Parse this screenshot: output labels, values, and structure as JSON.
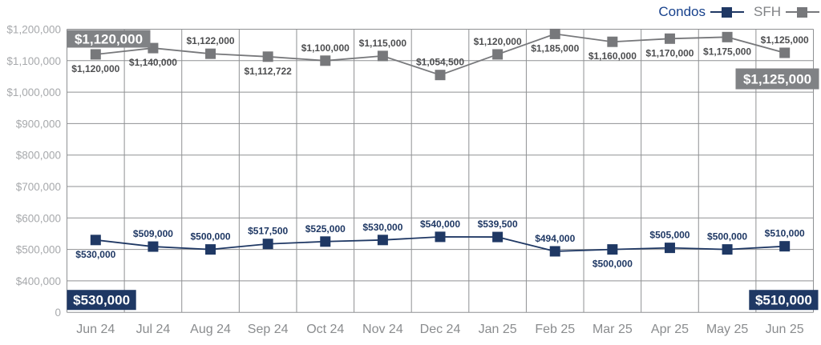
{
  "colors": {
    "condos": "#1F3864",
    "condos_legend_text": "#17418C",
    "sfh": "#77787B",
    "sfh_badge": "#808285",
    "sfh_label_text": "#4D4E50",
    "grid": "#8F9193",
    "y_tick_text": "#A7A9AC",
    "x_tick_text": "#8A8C8E",
    "badge_text": "#FFFFFF"
  },
  "legend": {
    "items": [
      {
        "label": "Condos",
        "series": "Condos"
      },
      {
        "label": "SFH",
        "series": "SFH"
      }
    ]
  },
  "chart_data": {
    "type": "line",
    "title": "",
    "x": [
      "Jun 24",
      "Jul 24",
      "Aug 24",
      "Sep 24",
      "Oct 24",
      "Nov 24",
      "Dec 24",
      "Jan 25",
      "Feb 25",
      "Mar 25",
      "Apr 25",
      "May 25",
      "Jun 25"
    ],
    "series": [
      {
        "name": "SFH",
        "color_key": "sfh",
        "label_color_key": "sfh_label_text",
        "values": [
          1120000,
          1140000,
          1122000,
          1112722,
          1100000,
          1115000,
          1054500,
          1120000,
          1185000,
          1160000,
          1170000,
          1175000,
          1125000
        ],
        "point_labels": [
          "$1,120,000",
          "$1,140,000",
          "$1,122,000",
          "$1,112,722",
          "$1,100,000",
          "$1,115,000",
          "$1,054,500",
          "$1,120,000",
          "$1,185,000",
          "$1,160,000",
          "$1,170,000",
          "$1,175,000",
          "$1,125,000"
        ],
        "label_positions": [
          "below",
          "below",
          "above",
          "below",
          "above",
          "above",
          "above",
          "above",
          "below",
          "below",
          "below",
          "below",
          "above"
        ]
      },
      {
        "name": "Condos",
        "color_key": "condos",
        "label_color_key": "condos",
        "values": [
          530000,
          509000,
          500000,
          517500,
          525000,
          530000,
          540000,
          539500,
          494000,
          500000,
          505000,
          500000,
          510000
        ],
        "point_labels": [
          "$530,000",
          "$509,000",
          "$500,000",
          "$517,500",
          "$525,000",
          "$530,000",
          "$540,000",
          "$539,500",
          "$494,000",
          "$500,000",
          "$505,000",
          "$500,000",
          "$510,000"
        ],
        "label_positions": [
          "below",
          "above",
          "above",
          "above",
          "above",
          "above",
          "above",
          "above",
          "above",
          "below",
          "above",
          "above",
          "above"
        ]
      }
    ],
    "y_axis": {
      "tick_labels": [
        "$1,200,000",
        "$1,100,000",
        "$1,000,000",
        "$900,000",
        "$800,000",
        "$700,000",
        "$600,000",
        "$500,000",
        "$400,000"
      ],
      "zero_label": "0",
      "range": [
        400000,
        1200000
      ],
      "broken_axis": true
    },
    "grid": true,
    "legend_position": "top-right",
    "legend_entries": [
      "Condos",
      "SFH"
    ]
  },
  "callouts": [
    {
      "text": "$1,120,000",
      "series": "SFH",
      "corner": "top-left"
    },
    {
      "text": "$1,125,000",
      "series": "SFH",
      "corner": "right"
    },
    {
      "text": "$530,000",
      "series": "Condos",
      "corner": "bottom-left"
    },
    {
      "text": "$510,000",
      "series": "Condos",
      "corner": "bottom-right"
    }
  ]
}
